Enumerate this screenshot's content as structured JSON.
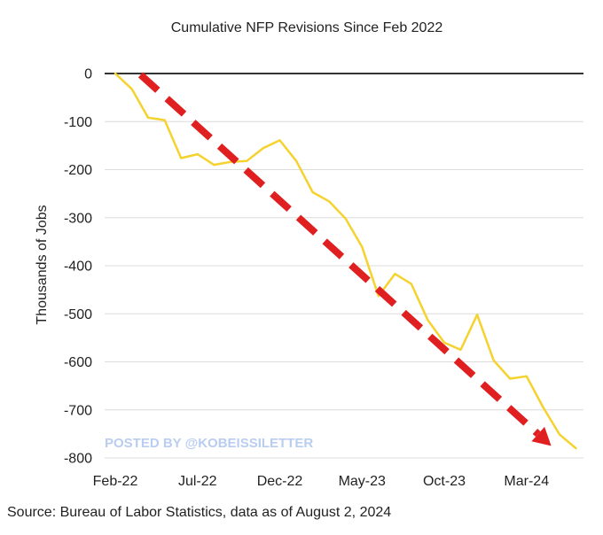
{
  "chart_data": {
    "type": "line",
    "title": "Cumulative NFP Revisions Since Feb 2022",
    "xlabel": "",
    "ylabel": "Thousands of Jobs",
    "ylim": [
      -800,
      0
    ],
    "yticks": [
      0,
      -100,
      -200,
      -300,
      -400,
      -500,
      -600,
      -700,
      -800
    ],
    "grid": true,
    "legend": "none",
    "x_tick_labels": [
      "Feb-22",
      "Jul-22",
      "Dec-22",
      "May-23",
      "Oct-23",
      "Mar-24"
    ],
    "x_tick_indices": [
      0,
      5,
      10,
      15,
      20,
      25
    ],
    "categories": [
      "2022-02",
      "2022-03",
      "2022-04",
      "2022-05",
      "2022-06",
      "2022-07",
      "2022-08",
      "2022-09",
      "2022-10",
      "2022-11",
      "2022-12",
      "2023-01",
      "2023-02",
      "2023-03",
      "2023-04",
      "2023-05",
      "2023-06",
      "2023-07",
      "2023-08",
      "2023-09",
      "2023-10",
      "2023-11",
      "2023-12",
      "2024-01",
      "2024-02",
      "2024-03",
      "2024-04",
      "2024-05",
      "2024-06"
    ],
    "series": [
      {
        "color": "#f5d22e",
        "values": [
          0,
          -32,
          -92,
          -97,
          -176,
          -168,
          -190,
          -184,
          -182,
          -155,
          -139,
          -182,
          -247,
          -266,
          -302,
          -361,
          -463,
          -417,
          -438,
          -513,
          -560,
          -575,
          -502,
          -597,
          -635,
          -630,
          -694,
          -751,
          -780
        ]
      }
    ],
    "annotations": [
      {
        "type": "dashed-arrow",
        "color": "#e02020",
        "from": [
          1,
          -10
        ],
        "to": [
          26.5,
          -775
        ]
      }
    ],
    "watermark": "POSTED BY @KOBEISSILETTER",
    "source": "Source: Bureau of Labor Statistics, data as of August 2, 2024"
  },
  "colors": {
    "series": "#f5d22e",
    "arrow": "#e02020",
    "grid": "#dcdcdc",
    "zero_line": "#333333",
    "watermark": "#b9cdf0"
  }
}
